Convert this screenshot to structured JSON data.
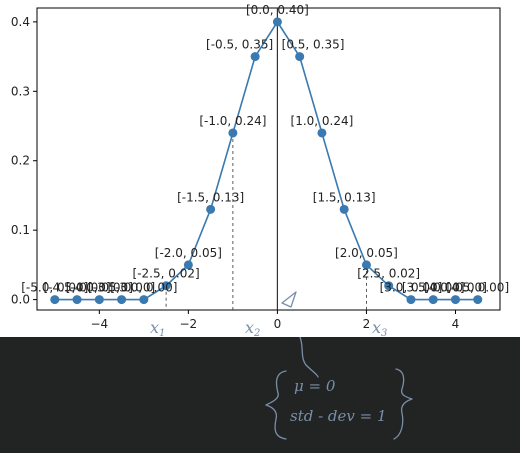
{
  "chart_data": {
    "type": "line",
    "x": [
      -5.0,
      -4.5,
      -4.0,
      -3.5,
      -3.0,
      -2.5,
      -2.0,
      -1.5,
      -1.0,
      -0.5,
      0.0,
      0.5,
      1.0,
      1.5,
      2.0,
      2.5,
      3.0,
      3.5,
      4.0,
      4.5
    ],
    "y": [
      0.0,
      0.0,
      0.0,
      0.0,
      0.0,
      0.02,
      0.05,
      0.13,
      0.24,
      0.35,
      0.4,
      0.35,
      0.24,
      0.13,
      0.05,
      0.02,
      0.0,
      0.0,
      0.0,
      0.0
    ],
    "labels": [
      "[-5.0, 0.00]",
      "[-4.5, 0.00]",
      "[-4.0, 0.00]",
      "[-3.5, 0.00]",
      "[-3.0, 0.00]",
      "[-2.5, 0.02]",
      "[-2.0, 0.05]",
      "[-1.5, 0.13]",
      "[-1.0, 0.24]",
      "[-0.5, 0.35]",
      "[0.0, 0.40]",
      "[0.5, 0.35]",
      "[1.0, 0.24]",
      "[1.5, 0.13]",
      "[2.0, 0.05]",
      "[2.5, 0.02]",
      "[3.0, 0.00]",
      "[3.5, 0.00]",
      "[4.0, 0.00]",
      "[4.5, 0.00]"
    ],
    "xlim": [
      -5.4,
      5.0
    ],
    "ylim": [
      -0.015,
      0.42
    ],
    "xticks": [
      -4,
      -2,
      0,
      2,
      4
    ],
    "yticks": [
      0.0,
      0.1,
      0.2,
      0.3,
      0.4
    ],
    "xtick_labels": [
      "−4",
      "−2",
      "0",
      "2",
      "4"
    ],
    "ytick_labels": [
      "0.0",
      "0.1",
      "0.2",
      "0.3",
      "0.4"
    ],
    "vertical_lines": [
      -2.5,
      -1.0,
      0.0,
      2.0
    ],
    "line_color": "#3a7ab0",
    "grid": false,
    "title": "",
    "xlabel": "",
    "ylabel": ""
  },
  "annotations": {
    "marks": [
      "x1",
      "x2",
      "x3"
    ],
    "mu": "μ = 0",
    "std": "std - dev = 1"
  }
}
